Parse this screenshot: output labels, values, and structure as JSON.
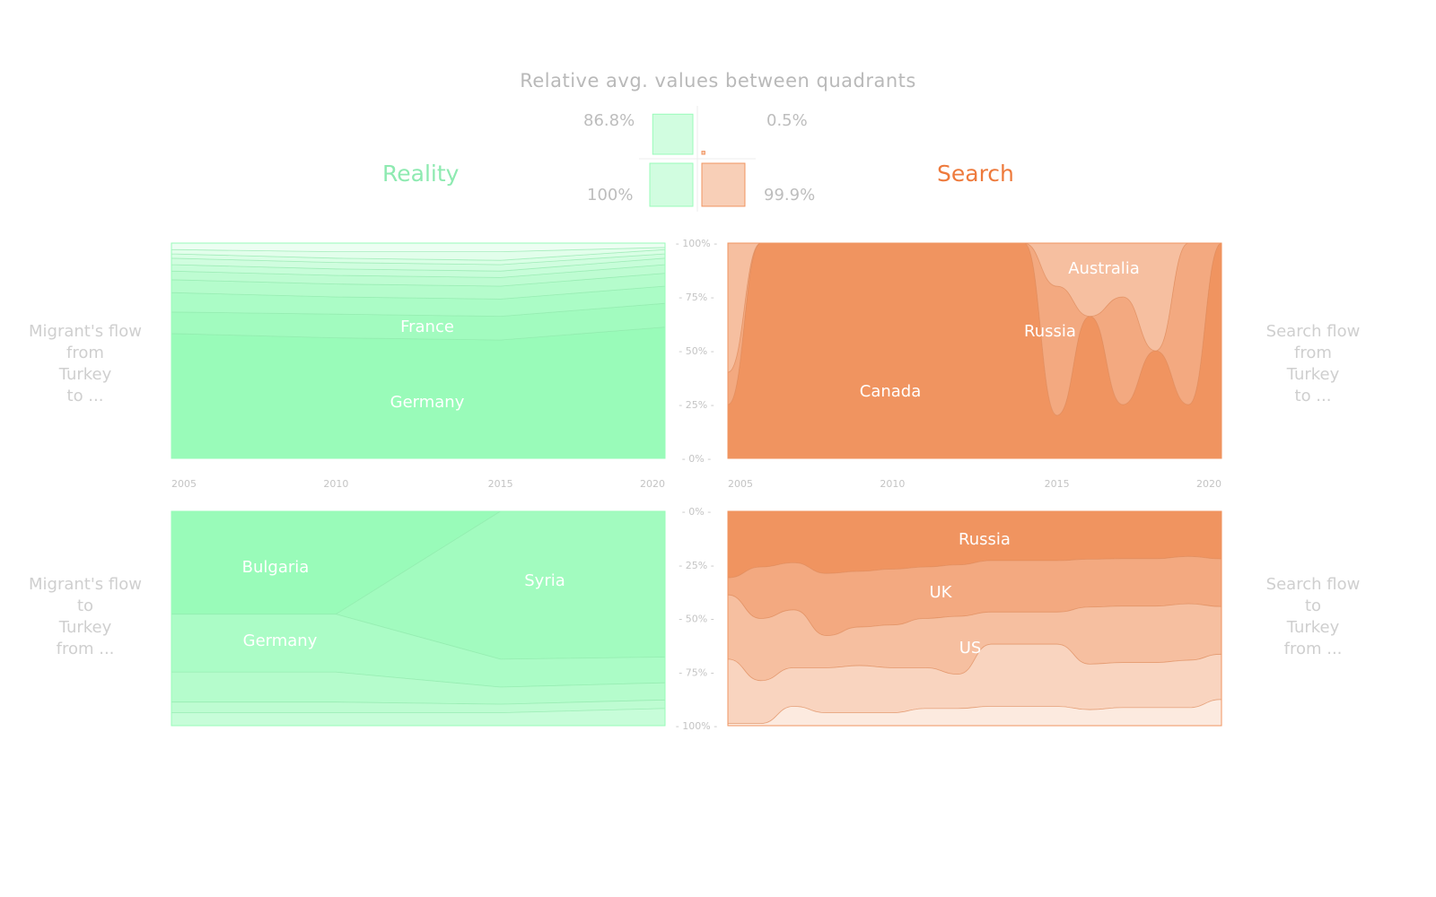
{
  "title": "Relative avg. values between quadrants",
  "quadrant_summary": {
    "top_left": "86.8%",
    "top_right": "0.5%",
    "bottom_left": "100%",
    "bottom_right": "99.9%",
    "values": {
      "top_left": 86.8,
      "top_right": 0.5,
      "bottom_left": 100,
      "bottom_right": 99.9
    }
  },
  "headings": {
    "left": "Reality",
    "right": "Search"
  },
  "side_labels": {
    "top_left": [
      "Migrant's flow",
      "from",
      "Turkey",
      "to ..."
    ],
    "bottom_left": [
      "Migrant's flow",
      "to",
      "Turkey",
      "from ..."
    ],
    "top_right": [
      "Search flow",
      "from",
      "Turkey",
      "to ..."
    ],
    "bottom_right": [
      "Search flow",
      "to",
      "Turkey",
      "from ..."
    ]
  },
  "colors": {
    "reality": "#99fbb9",
    "search": "#f09460",
    "reality_text": "#8eeab1",
    "search_text": "#ee7a3c",
    "muted": "#c4c4c4"
  },
  "chart_data": [
    {
      "id": "reality_from_turkey",
      "type": "area",
      "stacked": "percent",
      "x": [
        2005,
        2010,
        2015,
        2020
      ],
      "xlim": [
        2005,
        2020
      ],
      "ylim": [
        0,
        100
      ],
      "y_ticks": [
        "100%",
        "75%",
        "50%",
        "25%",
        "0%"
      ],
      "x_ticks": [
        "2005",
        "2010",
        "2015",
        "2020"
      ],
      "series": [
        {
          "name": "Germany",
          "values": [
            58,
            56,
            55,
            61
          ]
        },
        {
          "name": "France",
          "values": [
            10,
            11,
            11,
            11
          ]
        },
        {
          "name": "",
          "values": [
            9,
            8,
            8,
            8
          ]
        },
        {
          "name": "",
          "values": [
            6,
            6,
            6,
            6
          ]
        },
        {
          "name": "",
          "values": [
            4,
            4,
            4,
            4
          ]
        },
        {
          "name": "",
          "values": [
            3,
            3,
            3,
            3
          ]
        },
        {
          "name": "",
          "values": [
            3,
            3,
            3,
            2
          ]
        },
        {
          "name": "",
          "values": [
            2,
            2,
            2,
            2
          ]
        },
        {
          "name": "",
          "values": [
            2,
            3,
            4,
            1
          ]
        },
        {
          "name": "",
          "values": [
            3,
            4,
            4,
            2
          ]
        }
      ]
    },
    {
      "id": "search_from_turkey",
      "type": "area",
      "stacked": "percent",
      "x": [
        2005,
        2006,
        2007,
        2008,
        2009,
        2010,
        2011,
        2012,
        2013,
        2014,
        2015,
        2016,
        2017,
        2018,
        2019,
        2020
      ],
      "xlim": [
        2005,
        2020
      ],
      "ylim": [
        0,
        100
      ],
      "x_ticks": [
        "2005",
        "2010",
        "2015",
        "2020"
      ],
      "series": [
        {
          "name": "Canada",
          "values": [
            25,
            100,
            100,
            100,
            100,
            100,
            100,
            100,
            100,
            100,
            20,
            66,
            25,
            50,
            25,
            100
          ]
        },
        {
          "name": "Russia",
          "values": [
            15,
            0,
            0,
            0,
            0,
            0,
            0,
            0,
            0,
            0,
            60,
            0,
            50,
            0,
            75,
            0
          ]
        },
        {
          "name": "Australia",
          "values": [
            60,
            0,
            0,
            0,
            0,
            0,
            0,
            0,
            0,
            0,
            20,
            34,
            25,
            50,
            0,
            0
          ]
        }
      ]
    },
    {
      "id": "reality_to_turkey",
      "type": "area",
      "stacked": "percent",
      "x": [
        2005,
        2010,
        2015,
        2020
      ],
      "xlim": [
        2005,
        2020
      ],
      "ylim": [
        0,
        100
      ],
      "y_ticks": [
        "0%",
        "25%",
        "50%",
        "75%",
        "100%"
      ],
      "series": [
        {
          "name": "Bulgaria",
          "values": [
            48,
            48,
            0,
            0
          ]
        },
        {
          "name": "Syria",
          "values": [
            0,
            0,
            69,
            68
          ]
        },
        {
          "name": "Germany",
          "values": [
            27,
            27,
            13,
            12
          ]
        },
        {
          "name": "",
          "values": [
            14,
            14,
            8,
            8
          ]
        },
        {
          "name": "",
          "values": [
            5,
            5,
            4,
            4
          ]
        },
        {
          "name": "",
          "values": [
            6,
            6,
            6,
            8
          ]
        }
      ]
    },
    {
      "id": "search_to_turkey",
      "type": "area",
      "stacked": "percent",
      "x": [
        2005,
        2006,
        2007,
        2008,
        2009,
        2010,
        2011,
        2012,
        2013,
        2014,
        2015,
        2016,
        2017,
        2018,
        2019,
        2020
      ],
      "xlim": [
        2005,
        2020
      ],
      "ylim": [
        0,
        100
      ],
      "series": [
        {
          "name": "Russia",
          "values": [
            31,
            26,
            24,
            29,
            28,
            27,
            26,
            25,
            23,
            23,
            23,
            21,
            21,
            21,
            20,
            20
          ]
        },
        {
          "name": "UK",
          "values": [
            8,
            24,
            22,
            29,
            26,
            26,
            24,
            24,
            24,
            24,
            24,
            21,
            21,
            21,
            21,
            20
          ]
        },
        {
          "name": "US",
          "values": [
            30,
            29,
            27,
            15,
            18,
            20,
            23,
            27,
            15,
            15,
            15,
            25,
            25,
            25,
            25,
            20
          ]
        },
        {
          "name": "",
          "values": [
            30,
            20,
            18,
            21,
            22,
            21,
            19,
            16,
            29,
            29,
            29,
            20,
            20,
            20,
            21,
            19
          ]
        },
        {
          "name": "",
          "values": [
            1,
            1,
            9,
            6,
            6,
            6,
            8,
            8,
            9,
            9,
            9,
            7,
            8,
            8,
            8,
            11
          ]
        }
      ]
    }
  ]
}
